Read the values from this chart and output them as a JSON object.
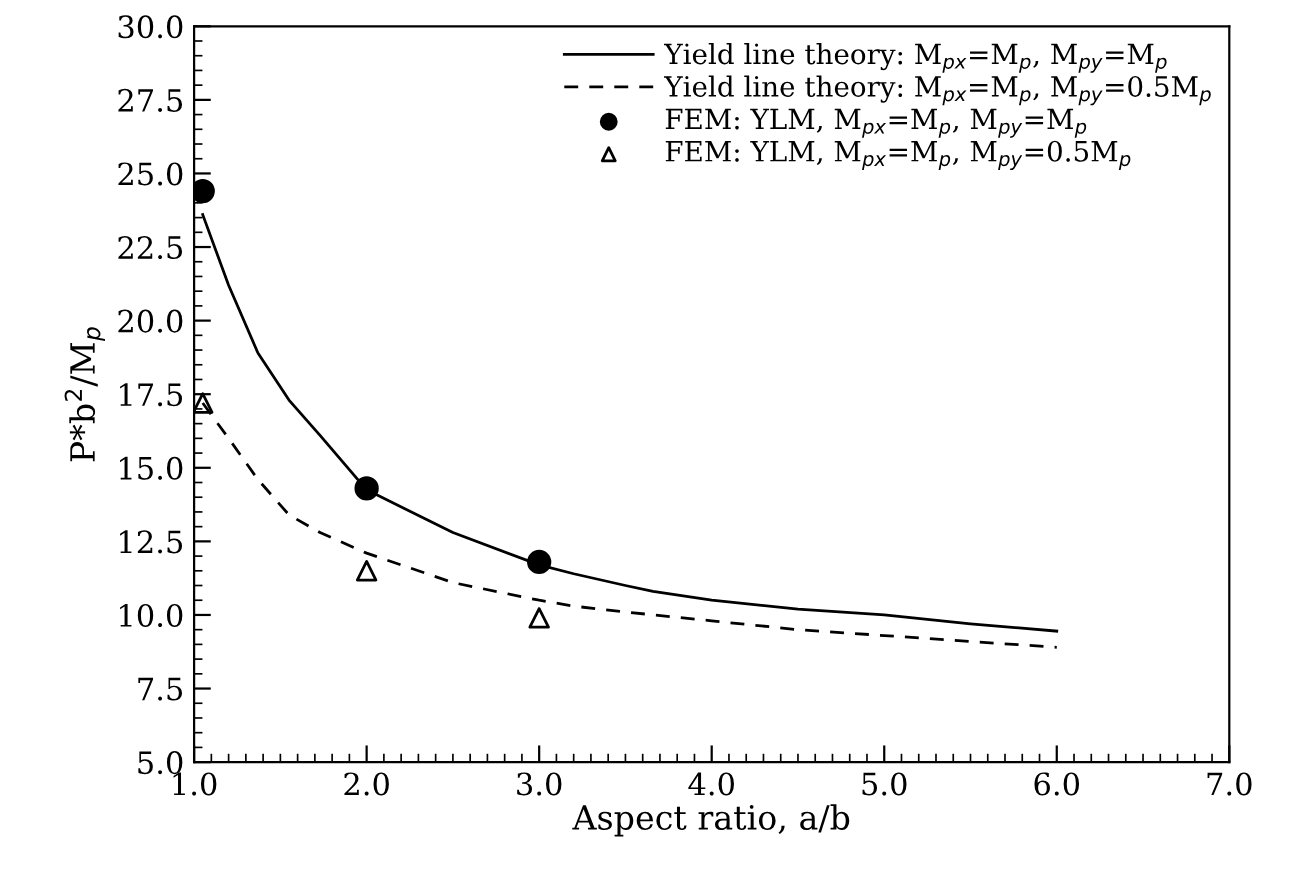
{
  "chart_data": {
    "type": "line",
    "xlabel": "Aspect ratio, a/b",
    "ylabel": "P*b$^{2}$/M$_{p}$",
    "xlim": [
      1,
      7
    ],
    "ylim": [
      5,
      30
    ],
    "xticks": [
      {
        "value": 1,
        "label": "1.0"
      },
      {
        "value": 2,
        "label": "2.0"
      },
      {
        "value": 3,
        "label": "3.0"
      },
      {
        "value": 4,
        "label": "4.0"
      },
      {
        "value": 5,
        "label": "5.0"
      },
      {
        "value": 6,
        "label": "6.0"
      },
      {
        "value": 7,
        "label": "7.0"
      }
    ],
    "yticks": [
      {
        "value": 5,
        "label": "5.0"
      },
      {
        "value": 7.5,
        "label": "7.5"
      },
      {
        "value": 10,
        "label": "10.0"
      },
      {
        "value": 12.5,
        "label": "12.5"
      },
      {
        "value": 15,
        "label": "15.0"
      },
      {
        "value": 17.5,
        "label": "17.5"
      },
      {
        "value": 20,
        "label": "20.0"
      },
      {
        "value": 22.5,
        "label": "22.5"
      },
      {
        "value": 25,
        "label": "25.0"
      },
      {
        "value": 27.5,
        "label": "27.5"
      },
      {
        "value": 30,
        "label": "30.0"
      }
    ],
    "grid": false,
    "legend": "top right",
    "series": [
      {
        "name": "Yield line theory: M$_{px}$=M$_{p}$, M$_{py}$=M$_{p}$",
        "color": "#000000",
        "line_style": "solid",
        "marker": "none",
        "x": [
          1.05,
          1.2,
          1.37,
          1.55,
          1.73,
          2.0,
          2.5,
          3.0,
          3.2,
          3.5,
          3.66,
          4.0,
          4.5,
          5.0,
          5.5,
          6.0
        ],
        "values": [
          23.6,
          21.2,
          18.9,
          17.3,
          16.1,
          14.25,
          12.8,
          11.7,
          11.4,
          11.0,
          10.8,
          10.5,
          10.2,
          10.0,
          9.7,
          9.45
        ]
      },
      {
        "name": "Yield line theory: M$_{px}$=M$_{p}$, M$_{py}$=0.5M$_{p}$",
        "color": "#000000",
        "line_style": "dashed",
        "marker": "none",
        "x": [
          1.05,
          1.2,
          1.37,
          1.55,
          1.73,
          2.0,
          2.5,
          3.0,
          3.2,
          3.5,
          4.0,
          4.5,
          5.0,
          5.5,
          6.0
        ],
        "values": [
          17.2,
          16.0,
          14.6,
          13.4,
          12.8,
          12.1,
          11.1,
          10.5,
          10.3,
          10.1,
          9.8,
          9.5,
          9.3,
          9.1,
          8.9
        ]
      },
      {
        "name": "FEM: YLM, M$_{px}$=M$_{p}$, M$_{py}$=M$_{p}$",
        "type": "scatter",
        "color": "#000000",
        "marker": "circle",
        "x": [
          1.05,
          2.0,
          3.0
        ],
        "values": [
          24.4,
          14.3,
          11.8
        ]
      },
      {
        "name": "FEM: YLM, M$_{px}$=M$_{p}$, M$_{py}$=0.5M$_{p}$",
        "type": "scatter",
        "color": "#000000",
        "marker": "triangle",
        "x": [
          1.05,
          2.0,
          3.0
        ],
        "values": [
          17.2,
          11.5,
          9.9
        ]
      }
    ]
  }
}
